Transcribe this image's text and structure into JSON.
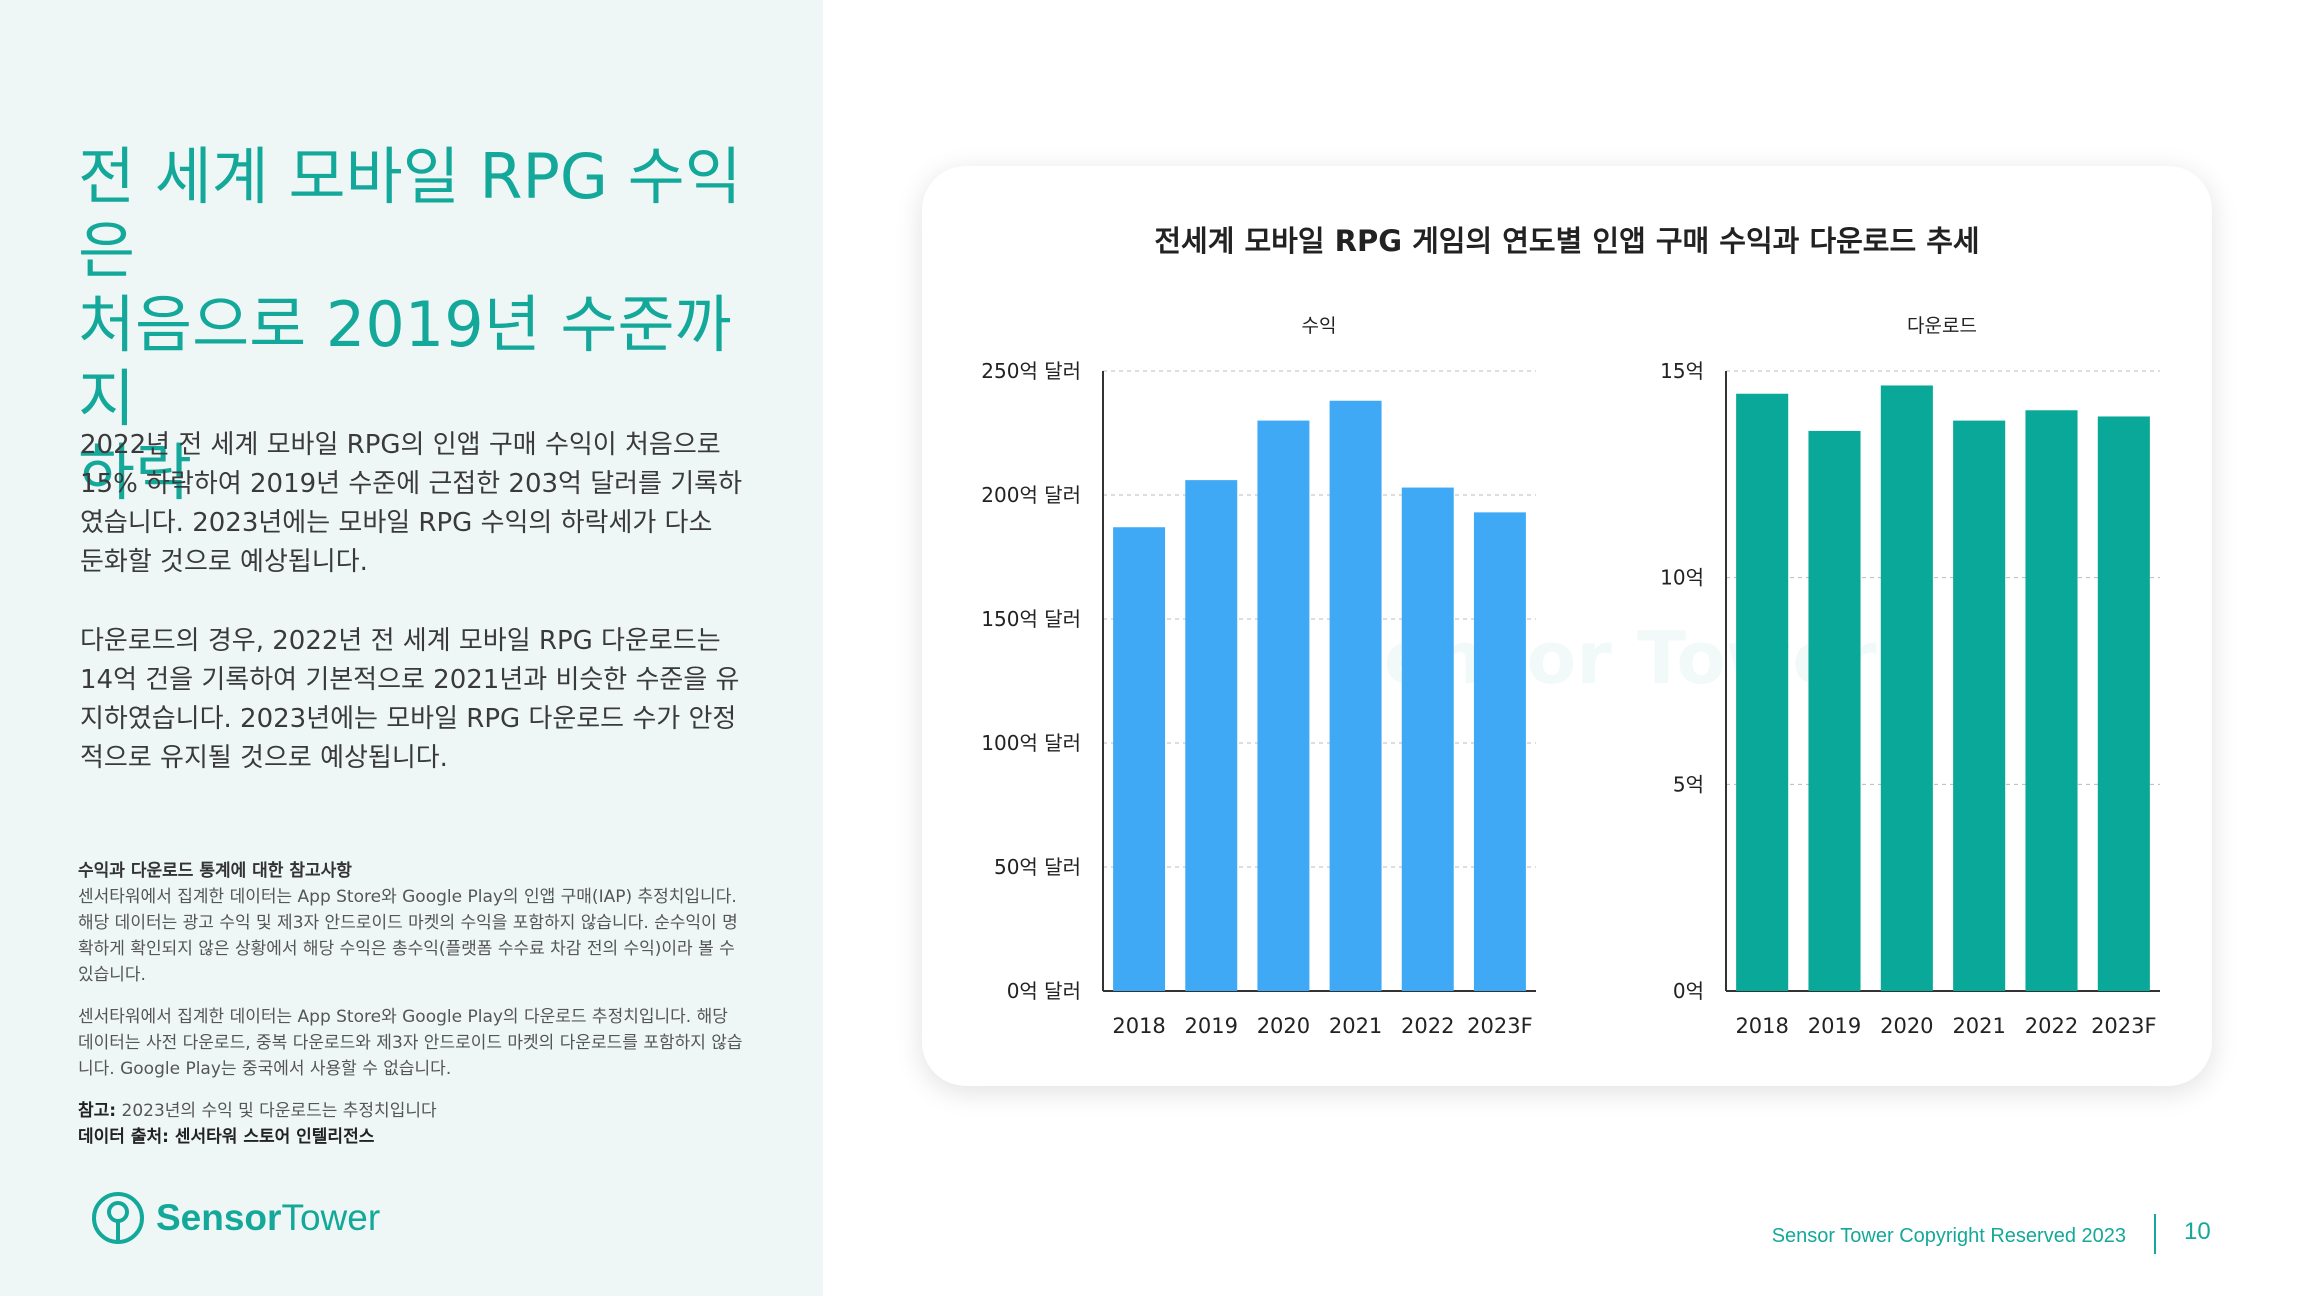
{
  "headline": [
    "전 세계 모바일 RPG 수익은",
    "처음으로 2019년 수준까지",
    "하락"
  ],
  "paragraph1": "2022년 전 세계 모바일 RPG의 인앱 구매 수익이 처음으로 15% 하락하여 2019년 수준에 근접한 203억 달러를 기록하였습니다. 2023년에는 모바일 RPG 수익의 하락세가 다소 둔화할 것으로 예상됩니다.",
  "paragraph2": "다운로드의 경우, 2022년 전 세계 모바일 RPG 다운로드는 14억 건을 기록하여 기본적으로 2021년과 비슷한 수준을 유지하였습니다. 2023년에는 모바일 RPG 다운로드 수가 안정적으로 유지될 것으로 예상됩니다.",
  "notes": {
    "title": "수익과 다운로드 통계에 대한 참고사항",
    "revenue_note": "센서타워에서 집계한 데이터는 App Store와 Google Play의 인앱 구매(IAP) 추정치입니다. 해당 데이터는 광고 수익 및 제3자 안드로이드 마켓의 수익을 포함하지 않습니다. 순수익이 명확하게 확인되지 않은 상황에서 해당 수익은 총수익(플랫폼 수수료 차감 전의 수익)이라 볼 수 있습니다.",
    "download_note": "센서타워에서 집계한 데이터는 App Store와 Google Play의 다운로드 추정치입니다. 해당 데이터는 사전 다운로드, 중복 다운로드와 제3자 안드로이드 마켓의 다운로드를 포함하지 않습니다. Google Play는 중국에서 사용할 수 없습니다.",
    "ref_label": "참고:",
    "ref_text": "2023년의 수익 및 다운로드는 추정치입니다",
    "source_label": "데이터 출처: 센서타워 스토어 인텔리전스"
  },
  "logo": {
    "part1": "Sensor",
    "part2": "Tower"
  },
  "footer": {
    "copyright": "Sensor Tower Copyright Reserved 2023",
    "page": "10"
  },
  "chart_title": "전세계 모바일 RPG 게임의 연도별 인앱 구매 수익과 다운로드 추세",
  "watermark": "Sensor Tower",
  "colors": {
    "revenue": "#3fa9f5",
    "downloads": "#0aa898",
    "accent": "#14a89a"
  },
  "chart_data": [
    {
      "type": "bar",
      "title": "수익",
      "categories": [
        "2018",
        "2019",
        "2020",
        "2021",
        "2022",
        "2023F"
      ],
      "values": [
        187,
        206,
        230,
        238,
        203,
        193
      ],
      "ylim": [
        0,
        250
      ],
      "yticks": [
        0,
        50,
        100,
        150,
        200,
        250
      ],
      "ytick_labels": [
        "0억 달러",
        "50억 달러",
        "100억 달러",
        "150억 달러",
        "200억 달러",
        "250억 달러"
      ],
      "grid": true
    },
    {
      "type": "bar",
      "title": "다운로드",
      "categories": [
        "2018",
        "2019",
        "2020",
        "2021",
        "2022",
        "2023F"
      ],
      "values": [
        14.45,
        13.55,
        14.65,
        13.8,
        14.05,
        13.9
      ],
      "ylim": [
        0,
        15
      ],
      "yticks": [
        0,
        5,
        10,
        15
      ],
      "ytick_labels": [
        "0억",
        "5억",
        "10억",
        "15억"
      ],
      "grid": true
    }
  ]
}
